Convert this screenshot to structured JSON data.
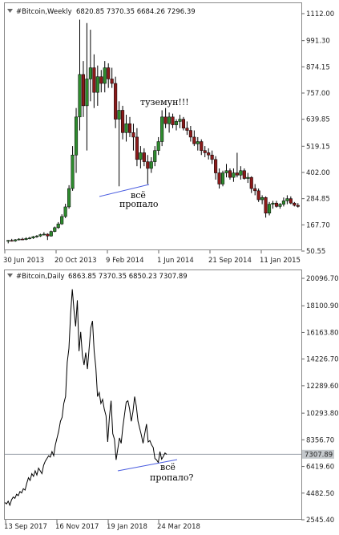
{
  "chart_data": [
    {
      "type": "candlestick",
      "header": {
        "symbol": "#Bitcoin,Weekly",
        "ohlc": "6820.85 7370.35 6684.26 7296.39"
      },
      "y_ticks": [
        "1112.00",
        "991.30",
        "874.15",
        "757.00",
        "639.85",
        "519.15",
        "402.00",
        "284.85",
        "167.70",
        "50.55"
      ],
      "ylim": [
        50.55,
        1112.0
      ],
      "x_ticks": [
        "30 Jun 2013",
        "20 Oct 2013",
        "9 Feb 2014",
        "1 Jun 2014",
        "21 Sep 2014",
        "11 Jan 2015"
      ],
      "annotations": [
        {
          "text": "туземун!!!"
        },
        {
          "text": "всё"
        },
        {
          "text": "пропало"
        }
      ],
      "candles": [
        {
          "o": 95,
          "h": 100,
          "l": 85,
          "c": 98
        },
        {
          "o": 98,
          "h": 105,
          "l": 93,
          "c": 96
        },
        {
          "o": 96,
          "h": 104,
          "l": 92,
          "c": 101
        },
        {
          "o": 101,
          "h": 108,
          "l": 98,
          "c": 104
        },
        {
          "o": 104,
          "h": 110,
          "l": 100,
          "c": 102
        },
        {
          "o": 102,
          "h": 112,
          "l": 99,
          "c": 107
        },
        {
          "o": 107,
          "h": 114,
          "l": 103,
          "c": 109
        },
        {
          "o": 109,
          "h": 118,
          "l": 105,
          "c": 115
        },
        {
          "o": 115,
          "h": 122,
          "l": 110,
          "c": 118
        },
        {
          "o": 118,
          "h": 128,
          "l": 114,
          "c": 124
        },
        {
          "o": 124,
          "h": 135,
          "l": 120,
          "c": 126
        },
        {
          "o": 126,
          "h": 130,
          "l": 100,
          "c": 118
        },
        {
          "o": 118,
          "h": 142,
          "l": 115,
          "c": 138
        },
        {
          "o": 138,
          "h": 160,
          "l": 135,
          "c": 155
        },
        {
          "o": 155,
          "h": 180,
          "l": 150,
          "c": 172
        },
        {
          "o": 172,
          "h": 215,
          "l": 168,
          "c": 205
        },
        {
          "o": 205,
          "h": 262,
          "l": 198,
          "c": 248
        },
        {
          "o": 248,
          "h": 345,
          "l": 240,
          "c": 330
        },
        {
          "o": 330,
          "h": 520,
          "l": 320,
          "c": 480
        },
        {
          "o": 480,
          "h": 690,
          "l": 400,
          "c": 650
        },
        {
          "o": 650,
          "h": 1085,
          "l": 590,
          "c": 840
        },
        {
          "o": 840,
          "h": 900,
          "l": 650,
          "c": 700
        },
        {
          "o": 700,
          "h": 1070,
          "l": 500,
          "c": 820
        },
        {
          "o": 820,
          "h": 1040,
          "l": 720,
          "c": 870
        },
        {
          "o": 870,
          "h": 930,
          "l": 690,
          "c": 760
        },
        {
          "o": 760,
          "h": 880,
          "l": 700,
          "c": 830
        },
        {
          "o": 830,
          "h": 860,
          "l": 760,
          "c": 800
        },
        {
          "o": 800,
          "h": 900,
          "l": 760,
          "c": 870
        },
        {
          "o": 870,
          "h": 890,
          "l": 780,
          "c": 820
        },
        {
          "o": 820,
          "h": 870,
          "l": 780,
          "c": 800
        },
        {
          "o": 800,
          "h": 830,
          "l": 600,
          "c": 640
        },
        {
          "o": 640,
          "h": 720,
          "l": 340,
          "c": 680
        },
        {
          "o": 680,
          "h": 700,
          "l": 550,
          "c": 580
        },
        {
          "o": 580,
          "h": 660,
          "l": 540,
          "c": 620
        },
        {
          "o": 620,
          "h": 650,
          "l": 560,
          "c": 580
        },
        {
          "o": 580,
          "h": 620,
          "l": 500,
          "c": 560
        },
        {
          "o": 560,
          "h": 600,
          "l": 430,
          "c": 460
        },
        {
          "o": 460,
          "h": 520,
          "l": 420,
          "c": 490
        },
        {
          "o": 490,
          "h": 510,
          "l": 430,
          "c": 450
        },
        {
          "o": 450,
          "h": 480,
          "l": 350,
          "c": 420
        },
        {
          "o": 420,
          "h": 470,
          "l": 400,
          "c": 450
        },
        {
          "o": 450,
          "h": 520,
          "l": 430,
          "c": 500
        },
        {
          "o": 500,
          "h": 560,
          "l": 480,
          "c": 540
        },
        {
          "o": 540,
          "h": 680,
          "l": 520,
          "c": 650
        },
        {
          "o": 650,
          "h": 690,
          "l": 600,
          "c": 620
        },
        {
          "o": 620,
          "h": 670,
          "l": 580,
          "c": 650
        },
        {
          "o": 650,
          "h": 665,
          "l": 600,
          "c": 615
        },
        {
          "o": 615,
          "h": 640,
          "l": 590,
          "c": 630
        },
        {
          "o": 630,
          "h": 660,
          "l": 600,
          "c": 640
        },
        {
          "o": 640,
          "h": 650,
          "l": 590,
          "c": 600
        },
        {
          "o": 600,
          "h": 630,
          "l": 570,
          "c": 590
        },
        {
          "o": 590,
          "h": 610,
          "l": 540,
          "c": 560
        },
        {
          "o": 560,
          "h": 590,
          "l": 520,
          "c": 530
        },
        {
          "o": 530,
          "h": 560,
          "l": 500,
          "c": 540
        },
        {
          "o": 540,
          "h": 550,
          "l": 480,
          "c": 500
        },
        {
          "o": 500,
          "h": 520,
          "l": 470,
          "c": 490
        },
        {
          "o": 490,
          "h": 510,
          "l": 460,
          "c": 480
        },
        {
          "o": 480,
          "h": 500,
          "l": 440,
          "c": 460
        },
        {
          "o": 460,
          "h": 475,
          "l": 370,
          "c": 400
        },
        {
          "o": 400,
          "h": 420,
          "l": 330,
          "c": 350
        },
        {
          "o": 350,
          "h": 410,
          "l": 340,
          "c": 400
        },
        {
          "o": 400,
          "h": 440,
          "l": 380,
          "c": 410
        },
        {
          "o": 410,
          "h": 420,
          "l": 370,
          "c": 380
        },
        {
          "o": 380,
          "h": 420,
          "l": 360,
          "c": 400
        },
        {
          "o": 400,
          "h": 490,
          "l": 380,
          "c": 390
        },
        {
          "o": 390,
          "h": 430,
          "l": 370,
          "c": 410
        },
        {
          "o": 410,
          "h": 420,
          "l": 370,
          "c": 375
        },
        {
          "o": 375,
          "h": 400,
          "l": 355,
          "c": 380
        },
        {
          "o": 380,
          "h": 385,
          "l": 310,
          "c": 330
        },
        {
          "o": 330,
          "h": 350,
          "l": 300,
          "c": 320
        },
        {
          "o": 320,
          "h": 330,
          "l": 270,
          "c": 280
        },
        {
          "o": 280,
          "h": 300,
          "l": 260,
          "c": 290
        },
        {
          "o": 290,
          "h": 295,
          "l": 200,
          "c": 220
        },
        {
          "o": 220,
          "h": 270,
          "l": 210,
          "c": 260
        },
        {
          "o": 260,
          "h": 275,
          "l": 240,
          "c": 265
        },
        {
          "o": 265,
          "h": 275,
          "l": 245,
          "c": 250
        },
        {
          "o": 250,
          "h": 265,
          "l": 240,
          "c": 260
        },
        {
          "o": 260,
          "h": 290,
          "l": 250,
          "c": 275
        },
        {
          "o": 275,
          "h": 300,
          "l": 260,
          "c": 285
        },
        {
          "o": 285,
          "h": 295,
          "l": 260,
          "c": 265
        },
        {
          "o": 265,
          "h": 270,
          "l": 250,
          "c": 255
        },
        {
          "o": 255,
          "h": 265,
          "l": 245,
          "c": 250
        }
      ]
    },
    {
      "type": "line",
      "header": {
        "symbol": "#Bitcoin,Daily",
        "ohlc": "6863.85 7370.35 6850.23 7307.89"
      },
      "y_ticks": [
        "20096.70",
        "18100.90",
        "16163.80",
        "14226.70",
        "12289.60",
        "10293.80",
        "8356.70",
        "6419.60",
        "4482.50",
        "2545.40"
      ],
      "ylim": [
        2545.4,
        20096.7
      ],
      "x_ticks": [
        "13 Sep 2017",
        "16 Nov 2017",
        "19 Jan 2018",
        "24 Mar 2018"
      ],
      "last_price": "7307.89",
      "annotations": [
        {
          "text": "всё"
        },
        {
          "text": "пропало?"
        }
      ],
      "series": [
        {
          "values": [
            3800,
            3700,
            3900,
            3600,
            4000,
            4200,
            4100,
            4400,
            4300,
            4600,
            4500,
            4800,
            4700,
            5200,
            5600,
            5400,
            5900,
            5700,
            6100,
            5800,
            6300,
            6100,
            5900,
            6500,
            6800,
            7000,
            7200,
            7100,
            7500,
            7200,
            8000,
            8500,
            9000,
            9700,
            10000,
            11000,
            11500,
            14000,
            15000,
            17500,
            19300,
            17800,
            16600,
            18500,
            14800,
            16200,
            14500,
            13800,
            14700,
            13500,
            15000,
            16500,
            17000,
            14800,
            13600,
            11500,
            11800,
            11000,
            11300,
            10600,
            10100,
            8200,
            10000,
            11200,
            8800,
            8400,
            6900,
            7700,
            8500,
            8100,
            9300,
            10200,
            11100,
            11200,
            10600,
            9700,
            10400,
            11500,
            10800,
            9700,
            9200,
            8700,
            8100,
            8800,
            9500,
            8200,
            8300,
            8000,
            7800,
            7000,
            6900,
            6700,
            7500,
            6950,
            7150,
            7400,
            7300
          ]
        }
      ]
    }
  ]
}
